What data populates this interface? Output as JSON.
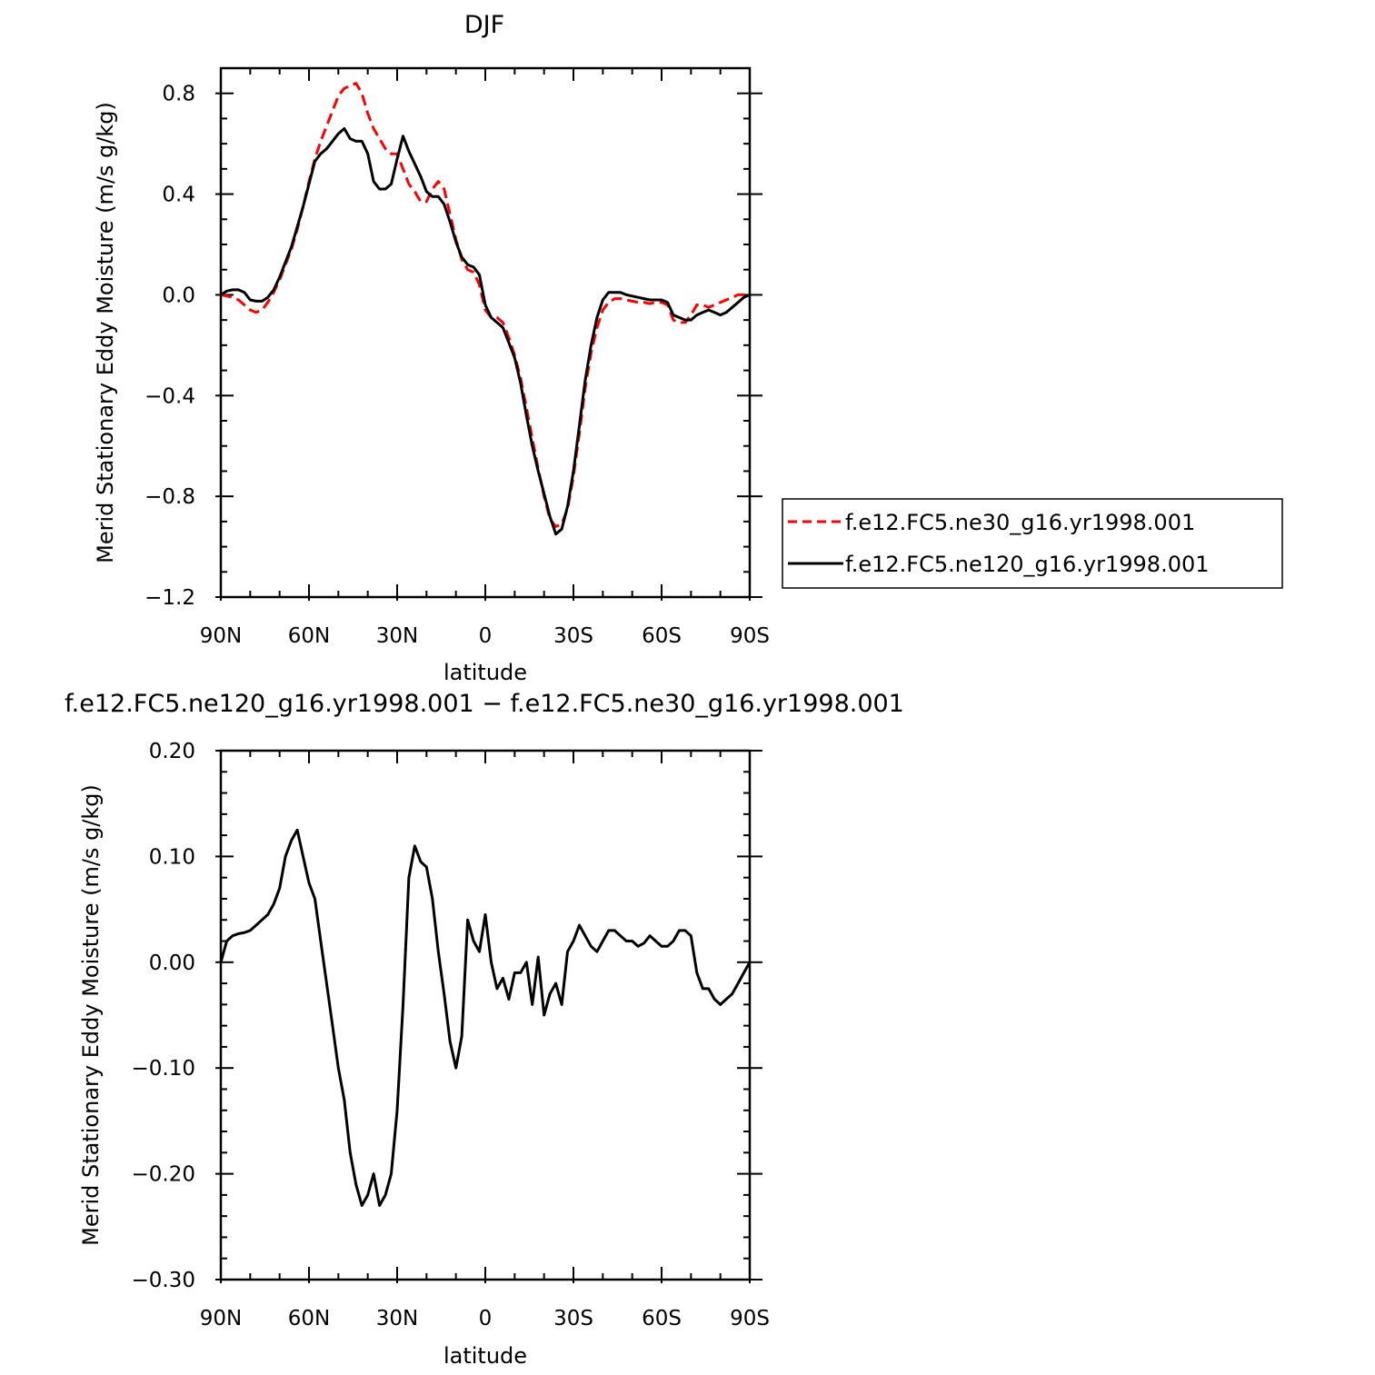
{
  "chart_data": [
    {
      "type": "line",
      "title": "DJF",
      "xlabel": "latitude",
      "ylabel": "Merid Stationary Eddy Moisture (m/s g/kg)",
      "x_ticks": [
        "90N",
        "60N",
        "30N",
        "0",
        "30S",
        "60S",
        "90S"
      ],
      "y_ticks": [
        "0.8",
        "0.4",
        "0.0",
        "−0.4",
        "−0.8",
        "−1.2"
      ],
      "xlim": [
        90,
        -90
      ],
      "ylim": [
        -1.2,
        0.9
      ],
      "grid": false,
      "legend_position": "right",
      "x": [
        90,
        88,
        86,
        84,
        82,
        80,
        78,
        76,
        74,
        72,
        70,
        68,
        66,
        64,
        62,
        60,
        58,
        56,
        54,
        52,
        50,
        48,
        46,
        44,
        42,
        40,
        38,
        36,
        34,
        32,
        30,
        28,
        26,
        24,
        22,
        20,
        18,
        16,
        14,
        12,
        10,
        8,
        6,
        4,
        2,
        0,
        -2,
        -4,
        -6,
        -8,
        -10,
        -12,
        -14,
        -16,
        -18,
        -20,
        -22,
        -24,
        -26,
        -28,
        -30,
        -32,
        -34,
        -36,
        -38,
        -40,
        -42,
        -44,
        -46,
        -48,
        -50,
        -52,
        -54,
        -56,
        -58,
        -60,
        -62,
        -64,
        -66,
        -68,
        -70,
        -72,
        -74,
        -76,
        -78,
        -80,
        -82,
        -84,
        -86,
        -88,
        -90
      ],
      "series": [
        {
          "name": "f.e12.FC5.ne30_g16.yr1998.001",
          "color": "#ff0000",
          "dash": "dashed",
          "values": [
            0.0,
            -0.005,
            -0.01,
            -0.02,
            -0.04,
            -0.06,
            -0.07,
            -0.06,
            -0.03,
            0.01,
            0.06,
            0.12,
            0.18,
            0.26,
            0.35,
            0.45,
            0.54,
            0.61,
            0.67,
            0.73,
            0.79,
            0.82,
            0.83,
            0.84,
            0.8,
            0.72,
            0.66,
            0.62,
            0.58,
            0.56,
            0.56,
            0.5,
            0.44,
            0.41,
            0.37,
            0.37,
            0.42,
            0.45,
            0.42,
            0.32,
            0.22,
            0.14,
            0.1,
            0.09,
            0.04,
            -0.06,
            -0.09,
            -0.09,
            -0.11,
            -0.17,
            -0.24,
            -0.33,
            -0.45,
            -0.57,
            -0.69,
            -0.8,
            -0.89,
            -0.92,
            -0.91,
            -0.85,
            -0.72,
            -0.55,
            -0.37,
            -0.23,
            -0.13,
            -0.06,
            -0.03,
            -0.015,
            -0.015,
            -0.02,
            -0.025,
            -0.03,
            -0.03,
            -0.035,
            -0.03,
            -0.03,
            -0.04,
            -0.1,
            -0.11,
            -0.11,
            -0.08,
            -0.04,
            -0.04,
            -0.05,
            -0.04,
            -0.03,
            -0.02,
            -0.01,
            0.0,
            0.0,
            0.0
          ]
        },
        {
          "name": "f.e12.FC5.ne120_g16.yr1998.001",
          "color": "#000000",
          "dash": "solid",
          "values": [
            0.0,
            0.015,
            0.02,
            0.02,
            0.01,
            -0.02,
            -0.025,
            -0.025,
            -0.01,
            0.02,
            0.07,
            0.13,
            0.19,
            0.27,
            0.35,
            0.44,
            0.53,
            0.56,
            0.58,
            0.61,
            0.64,
            0.66,
            0.62,
            0.61,
            0.61,
            0.56,
            0.45,
            0.42,
            0.42,
            0.44,
            0.54,
            0.63,
            0.57,
            0.52,
            0.47,
            0.41,
            0.39,
            0.39,
            0.36,
            0.29,
            0.21,
            0.15,
            0.12,
            0.11,
            0.08,
            -0.04,
            -0.09,
            -0.11,
            -0.13,
            -0.19,
            -0.25,
            -0.35,
            -0.48,
            -0.6,
            -0.7,
            -0.79,
            -0.88,
            -0.95,
            -0.93,
            -0.84,
            -0.7,
            -0.52,
            -0.34,
            -0.2,
            -0.09,
            -0.02,
            0.01,
            0.01,
            0.01,
            0.0,
            -0.005,
            -0.01,
            -0.015,
            -0.02,
            -0.02,
            -0.02,
            -0.03,
            -0.08,
            -0.09,
            -0.1,
            -0.1,
            -0.08,
            -0.07,
            -0.06,
            -0.07,
            -0.08,
            -0.07,
            -0.05,
            -0.03,
            -0.01,
            0.0
          ]
        }
      ]
    },
    {
      "type": "line",
      "title": "f.e12.FC5.ne120_g16.yr1998.001 − f.e12.FC5.ne30_g16.yr1998.001",
      "xlabel": "latitude",
      "ylabel": "Merid Stationary Eddy Moisture (m/s g/kg)",
      "x_ticks": [
        "90N",
        "60N",
        "30N",
        "0",
        "30S",
        "60S",
        "90S"
      ],
      "y_ticks": [
        "0.20",
        "0.10",
        "0.00",
        "−0.10",
        "−0.20",
        "−0.30"
      ],
      "xlim": [
        90,
        -90
      ],
      "ylim": [
        -0.3,
        0.2
      ],
      "grid": false,
      "x": [
        90,
        88,
        86,
        84,
        82,
        80,
        78,
        76,
        74,
        72,
        70,
        68,
        66,
        64,
        62,
        60,
        58,
        56,
        54,
        52,
        50,
        48,
        46,
        44,
        42,
        40,
        38,
        36,
        34,
        32,
        30,
        28,
        26,
        24,
        22,
        20,
        18,
        16,
        14,
        12,
        10,
        8,
        6,
        4,
        2,
        0,
        -2,
        -4,
        -6,
        -8,
        -10,
        -12,
        -14,
        -16,
        -18,
        -20,
        -22,
        -24,
        -26,
        -28,
        -30,
        -32,
        -34,
        -36,
        -38,
        -40,
        -42,
        -44,
        -46,
        -48,
        -50,
        -52,
        -54,
        -56,
        -58,
        -60,
        -62,
        -64,
        -66,
        -68,
        -70,
        -72,
        -74,
        -76,
        -78,
        -80,
        -82,
        -84,
        -86,
        -88,
        -90
      ],
      "series": [
        {
          "name": "",
          "color": "#000000",
          "dash": "solid",
          "values": [
            0.0,
            0.02,
            0.025,
            0.027,
            0.028,
            0.03,
            0.035,
            0.04,
            0.045,
            0.055,
            0.07,
            0.1,
            0.115,
            0.125,
            0.1,
            0.075,
            0.06,
            0.02,
            -0.02,
            -0.06,
            -0.1,
            -0.13,
            -0.18,
            -0.21,
            -0.23,
            -0.22,
            -0.2,
            -0.23,
            -0.22,
            -0.2,
            -0.14,
            -0.04,
            0.08,
            0.11,
            0.095,
            0.09,
            0.06,
            0.01,
            -0.03,
            -0.075,
            -0.1,
            -0.07,
            0.04,
            0.02,
            0.01,
            0.045,
            0.0,
            -0.025,
            -0.015,
            -0.035,
            -0.01,
            -0.01,
            0.0,
            -0.04,
            0.005,
            -0.05,
            -0.03,
            -0.02,
            -0.04,
            0.01,
            0.02,
            0.035,
            0.025,
            0.015,
            0.01,
            0.02,
            0.03,
            0.03,
            0.025,
            0.02,
            0.02,
            0.015,
            0.018,
            0.025,
            0.02,
            0.015,
            0.015,
            0.02,
            0.03,
            0.03,
            0.025,
            -0.01,
            -0.025,
            -0.025,
            -0.035,
            -0.04,
            -0.035,
            -0.03,
            -0.02,
            -0.01,
            0.0
          ]
        }
      ]
    }
  ]
}
